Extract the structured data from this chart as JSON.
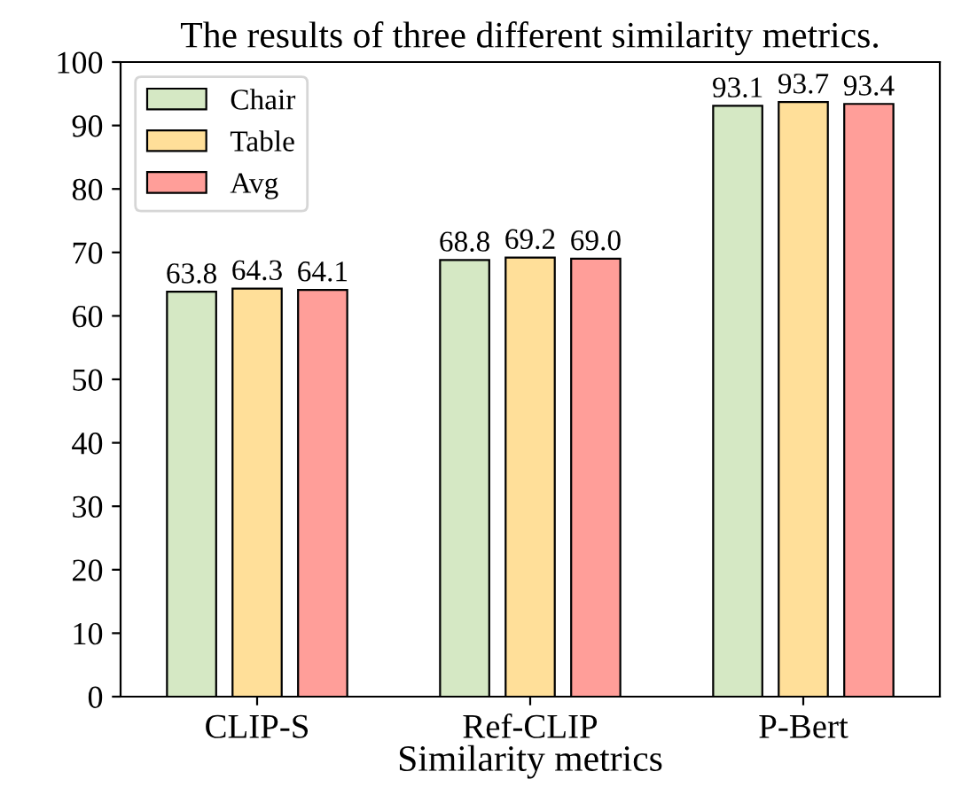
{
  "chart_data": {
    "type": "bar",
    "title": "The results of three different similarity metrics.",
    "xlabel": "Similarity metrics",
    "categories": [
      "CLIP-S",
      "Ref-CLIP",
      "P-Bert"
    ],
    "series": [
      {
        "name": "Chair",
        "color": "#d5e8c4",
        "values": [
          63.8,
          68.8,
          93.1
        ],
        "value_labels": [
          "63.8",
          "68.8",
          "93.1"
        ]
      },
      {
        "name": "Table",
        "color": "#ffdf99",
        "values": [
          64.3,
          69.2,
          93.7
        ],
        "value_labels": [
          "64.3",
          "69.2",
          "93.7"
        ]
      },
      {
        "name": "Avg",
        "color": "#ff9e99",
        "values": [
          64.1,
          69.0,
          93.4
        ],
        "value_labels": [
          "64.1",
          "69.0",
          "93.4"
        ]
      }
    ],
    "ylim": [
      0,
      100
    ],
    "yticks": [
      0,
      10,
      20,
      30,
      40,
      50,
      60,
      70,
      80,
      90,
      100
    ],
    "legend": "top left",
    "grid": false
  }
}
